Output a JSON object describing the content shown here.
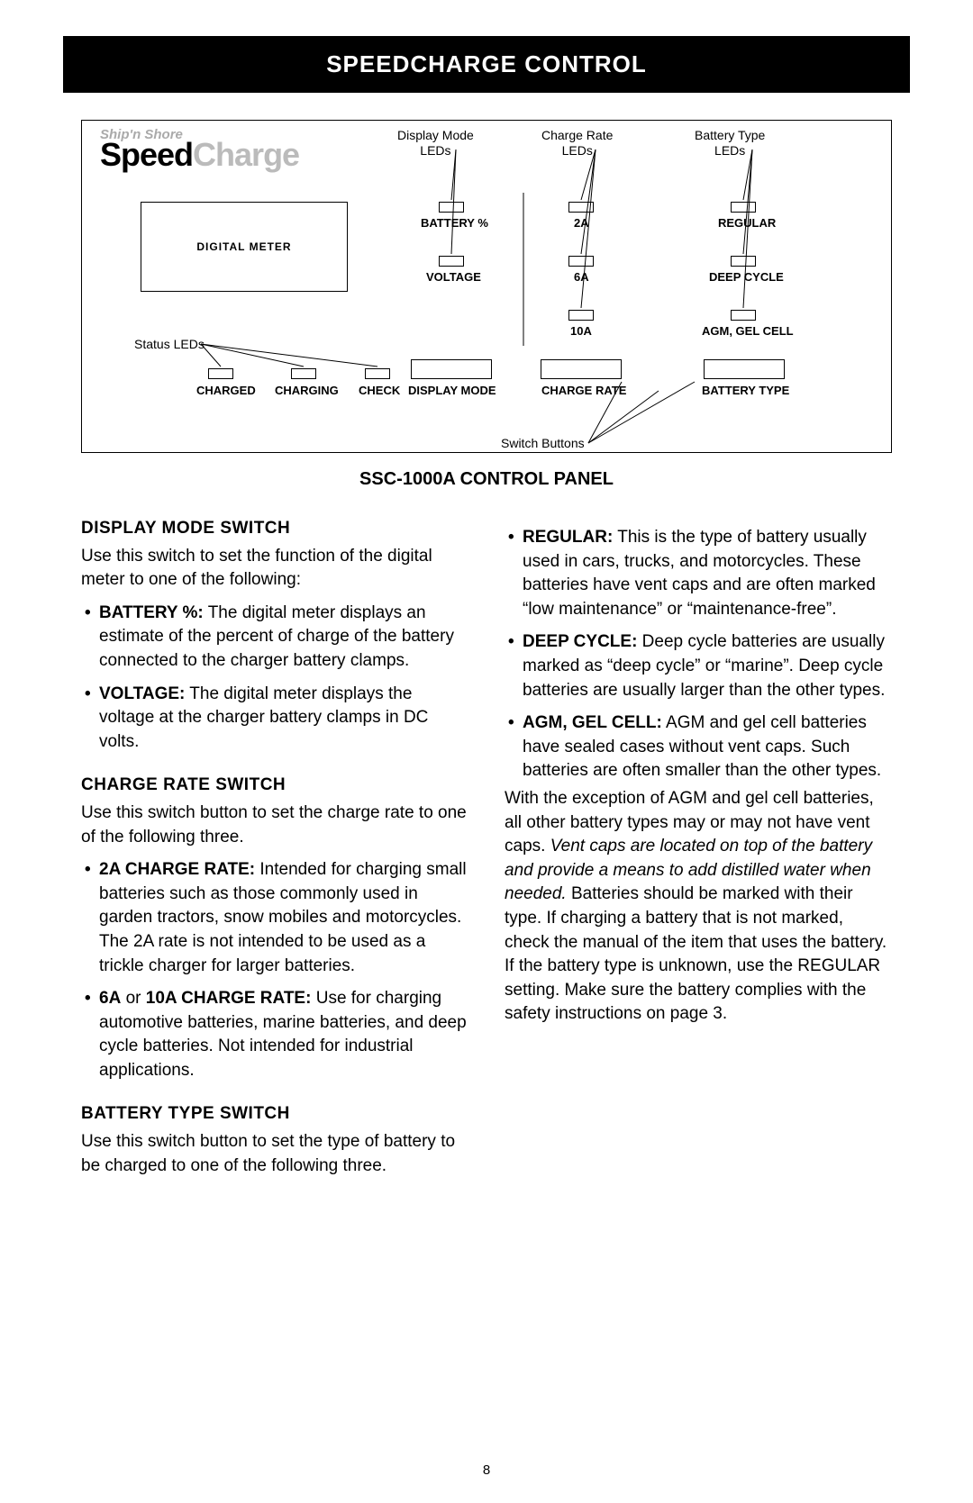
{
  "header": {
    "title": "SPEEDCHARGE CONTROL"
  },
  "diagram": {
    "logo": {
      "top": "Ship'n Shore",
      "left": "Speed",
      "right": "Charge"
    },
    "callouts": {
      "display_mode": "Display Mode\nLEDs",
      "charge_rate": "Charge Rate\nLEDs",
      "battery_type": "Battery Type\nLEDs",
      "status": "Status LEDs",
      "switch": "Switch Buttons"
    },
    "meter": "DIGITAL METER",
    "leds": {
      "battery_pct": "BATTERY %",
      "voltage": "VOLTAGE",
      "two_a": "2A",
      "six_a": "6A",
      "ten_a": "10A",
      "regular": "REGULAR",
      "deep_cycle": "DEEP CYCLE",
      "agm": "AGM, GEL CELL"
    },
    "status_leds": {
      "charged": "CHARGED",
      "charging": "CHARGING",
      "check": "CHECK"
    },
    "buttons": {
      "display_mode": "DISPLAY MODE",
      "charge_rate": "CHARGE RATE",
      "battery_type": "BATTERY TYPE"
    }
  },
  "panel_title": "SSC-1000A CONTROL PANEL",
  "left": {
    "h1": "DISPLAY MODE SWITCH",
    "p1": "Use this switch to set the function of the digital meter to one of the following:",
    "li1b": "BATTERY %:",
    "li1": " The digital meter displays an estimate of the percent of charge of the battery connected to the charger battery clamps.",
    "li2b": "VOLTAGE:",
    "li2": " The digital meter displays the voltage at the charger battery clamps in DC volts.",
    "h2": "CHARGE RATE SWITCH",
    "p2": "Use this switch button to set the charge rate to one of the following three.",
    "li3b": "2A CHARGE RATE:",
    "li3": " Intended for charging small batteries such as those commonly used in garden tractors, snow mobiles and motor­cycles. The 2A rate is not intended to be used as a trickle charger for larger batteries.",
    "li4b1": "6A",
    "li4m": " or ",
    "li4b2": "10A CHARGE RATE:",
    "li4": " Use for charging automotive batteries, marine batteries, and deep cycle batteries. Not intended for industrial applica­tions.",
    "h3": "BATTERY TYPE SWITCH",
    "p3": "Use this switch button to set the type of battery to be charged to one of the following three."
  },
  "right": {
    "li1b": "REGULAR:",
    "li1": " This is the type of battery usually used in cars, trucks, and motorcycles. These batteries have vent caps and are often marked “low maintenance” or “maintenance-free”.",
    "li2b": "DEEP CYCLE:",
    "li2": " Deep cycle batteries are usually marked as “deep cycle” or “marine”. Deep cycle batteries are usually larger than the other types.",
    "li3b": "AGM, GEL CELL:",
    "li3": " AGM and gel cell batteries have sealed cases without vent caps. Such batteries are often smaller than the other types.",
    "para_a": "With the exception of AGM and gel cell batteries, all other battery types may or may not have vent caps. ",
    "para_i": "Vent caps are located on top of the battery and provide a means to add distilled water when needed.",
    "para_b": " Batteries should be marked with their type. If charging a battery that is not marked, check the manual of the item that uses the battery. If the battery type is unknown, use the REGULAR setting. Make sure the battery complies with the safety instructions on page 3."
  },
  "page": "8"
}
